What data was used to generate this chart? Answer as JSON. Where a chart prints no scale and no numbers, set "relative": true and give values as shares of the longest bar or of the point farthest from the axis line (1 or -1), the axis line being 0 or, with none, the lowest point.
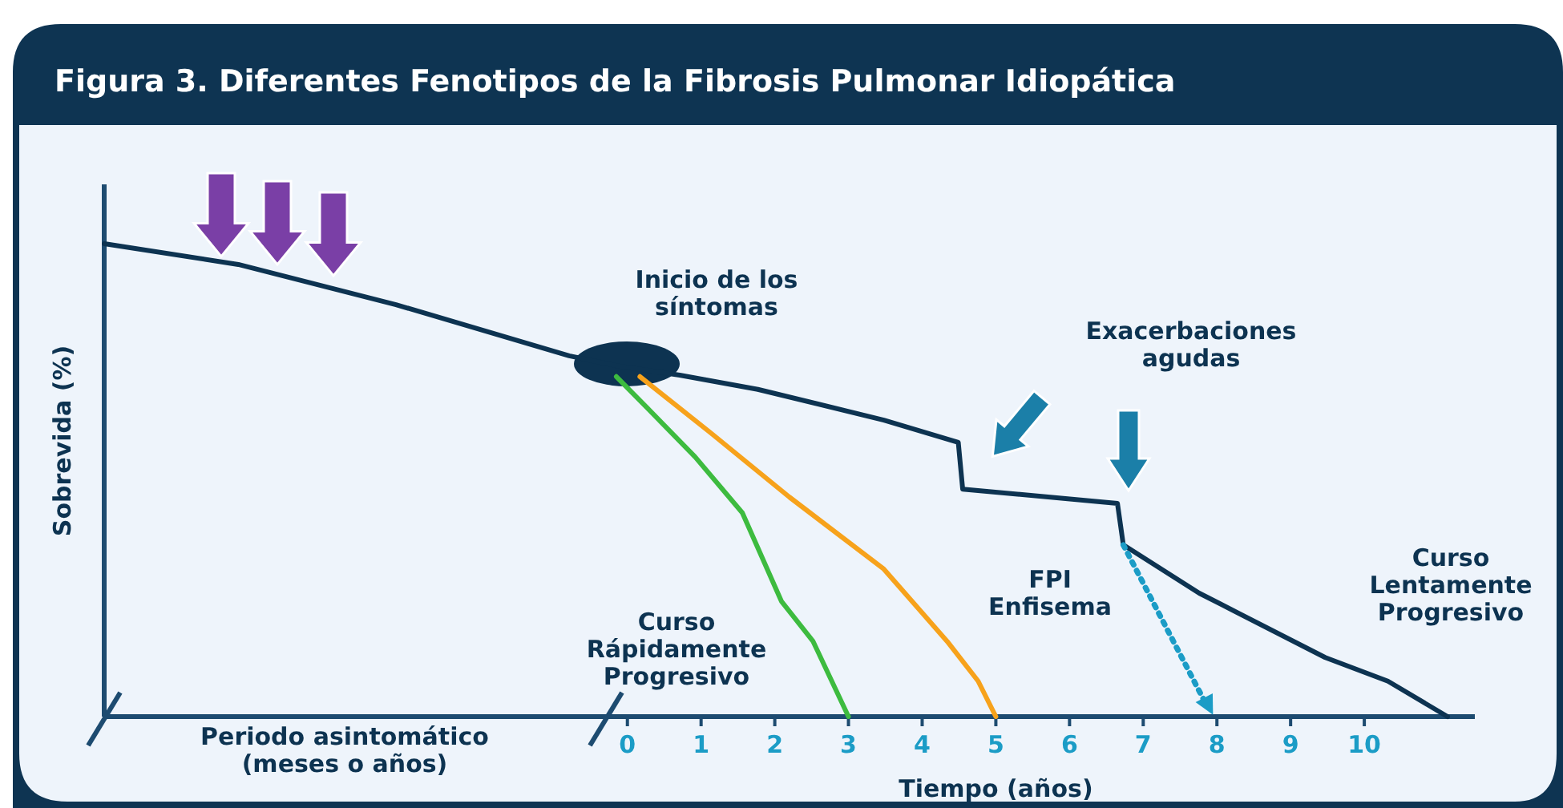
{
  "chart_data": {
    "type": "line",
    "title": "Figura 3. Diferentes Fenotipos de la Fibrosis Pulmonar Idiopática",
    "xlabel": "Tiempo (años)",
    "ylabel": "Sobrevida (%)",
    "relative": true,
    "xlim": [
      -7.1,
      11.5
    ],
    "xticks": [
      0,
      1,
      2,
      3,
      4,
      5,
      6,
      7,
      8,
      9,
      10
    ],
    "series": [
      {
        "color": "#0d3351",
        "x": [
          -7.1,
          -5.28,
          -3.14,
          -0.79,
          -0.15,
          0.71,
          1.77,
          3.48,
          4.49,
          4.55,
          6.65,
          6.73,
          7.76,
          9.47,
          10.32,
          11.13
        ],
        "values": [
          1.0,
          0.956,
          0.871,
          0.763,
          0.742,
          0.722,
          0.692,
          0.627,
          0.58,
          0.481,
          0.451,
          0.363,
          0.261,
          0.125,
          0.075,
          0
        ]
      },
      {
        "color": "#3dbb3f",
        "x": [
          -0.15,
          0.28,
          0.92,
          1.56,
          2.09,
          2.52,
          3.0
        ],
        "values": [
          0.719,
          0.651,
          0.549,
          0.431,
          0.244,
          0.159,
          0
        ]
      },
      {
        "color": "#f7a21b",
        "x": [
          0.17,
          1.13,
          2.2,
          3.48,
          4.34,
          4.76,
          5.0
        ],
        "values": [
          0.719,
          0.6,
          0.464,
          0.312,
          0.159,
          0.075,
          0
        ]
      },
      {
        "color": "#1b9cc6",
        "line_style": "dotted",
        "x": [
          6.73,
          7.86
        ],
        "values": [
          0.363,
          0.024
        ]
      }
    ],
    "annotations": [
      "Inicio de los\nsíntomas",
      "Exacerbaciones\nagudas",
      "FPI\nEnfisema",
      "Curso\nRápidamente\nProgresivo",
      "Curso\nLentamente\nProgresivo",
      "Periodo asintomático\n(meses o años)"
    ]
  }
}
